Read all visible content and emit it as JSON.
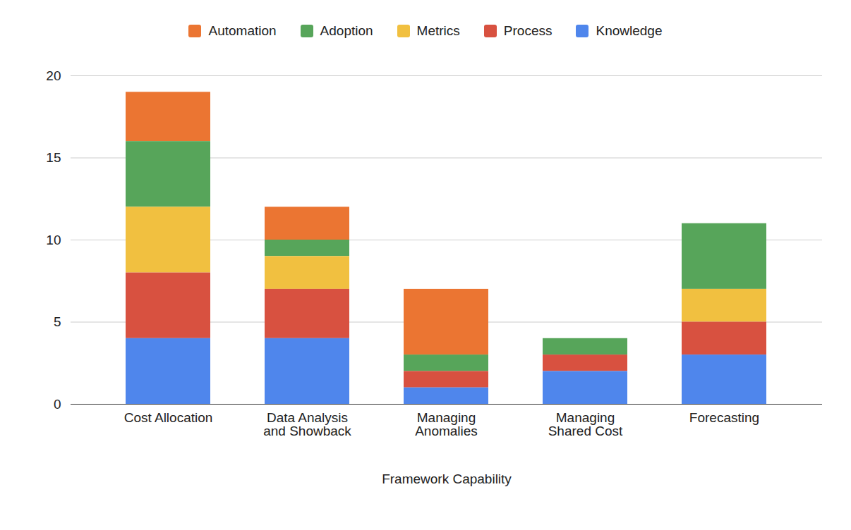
{
  "chart_data": {
    "type": "bar",
    "stacked": true,
    "grid": true,
    "legend": "top",
    "xlabel": "Framework Capability",
    "categories": [
      "Cost Allocation",
      "Data Analysis and Showback",
      "Managing Anomalies",
      "Managing Shared Cost",
      "Forecasting"
    ],
    "series": [
      {
        "name": "Automation",
        "color": "#eb7532",
        "values": [
          3,
          2,
          4,
          0,
          0
        ]
      },
      {
        "name": "Adoption",
        "color": "#57a55a",
        "values": [
          4,
          1,
          1,
          1,
          4
        ]
      },
      {
        "name": "Metrics",
        "color": "#f1c040",
        "values": [
          4,
          2,
          0,
          0,
          2
        ]
      },
      {
        "name": "Process",
        "color": "#d85140",
        "values": [
          4,
          3,
          1,
          1,
          2
        ]
      },
      {
        "name": "Knowledge",
        "color": "#4f86ec",
        "values": [
          4,
          4,
          1,
          2,
          3
        ]
      }
    ],
    "ylim": [
      0,
      20
    ],
    "yticks": [
      0,
      5,
      10,
      15,
      20
    ]
  }
}
